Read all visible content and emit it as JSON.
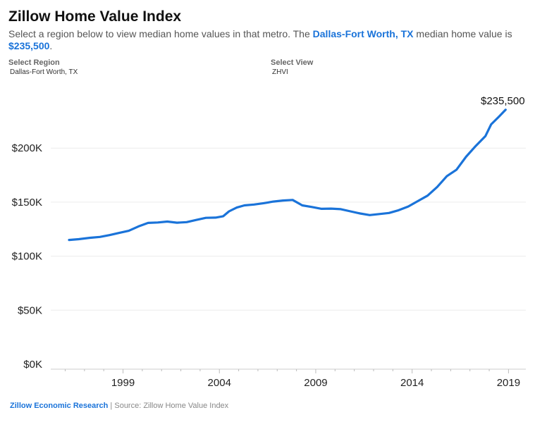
{
  "header": {
    "title": "Zillow Home Value Index",
    "subtitle_pre": "Select a region below to view median home values in that metro. The ",
    "region_highlight": "Dallas-Fort Worth, TX",
    "subtitle_mid": " median home value is ",
    "value_highlight": "$235,500",
    "subtitle_end": "."
  },
  "controls": {
    "region_label": "Select Region",
    "region_value": "Dallas-Fort Worth, TX",
    "view_label": "Select View",
    "view_value": "ZHVI"
  },
  "footer": {
    "brand": "Zillow Economic Research",
    "separator": " | ",
    "source": "Source: Zillow Home Value Index"
  },
  "colors": {
    "line": "#1a73d9",
    "highlight": "#1a73d9"
  },
  "chart_data": {
    "type": "line",
    "title": "Zillow Home Value Index",
    "series": [
      {
        "name": "Dallas-Fort Worth, TX ZHVI",
        "x": [
          1996.2,
          1996.7,
          1997.3,
          1997.8,
          1998.3,
          1998.8,
          1999.3,
          1999.8,
          2000.3,
          2000.8,
          2001.3,
          2001.8,
          2002.3,
          2002.8,
          2003.3,
          2003.8,
          2004.2,
          2004.5,
          2004.9,
          2005.3,
          2005.8,
          2006.3,
          2006.8,
          2007.3,
          2007.8,
          2008.3,
          2008.8,
          2009.3,
          2009.8,
          2010.3,
          2010.8,
          2011.3,
          2011.8,
          2012.3,
          2012.8,
          2013.3,
          2013.8,
          2014.3,
          2014.8,
          2015.3,
          2015.8,
          2016.3,
          2016.8,
          2017.3,
          2017.8,
          2018.1,
          2018.5,
          2018.85
        ],
        "y": [
          115000,
          115700,
          117000,
          117800,
          119500,
          121500,
          123500,
          127500,
          130800,
          131200,
          132000,
          131000,
          131500,
          133500,
          135500,
          135700,
          137000,
          141500,
          145000,
          147000,
          147800,
          149000,
          150500,
          151500,
          152000,
          147000,
          145500,
          143800,
          144000,
          143500,
          141500,
          139500,
          138000,
          139000,
          140000,
          142500,
          146000,
          151000,
          156000,
          164000,
          174000,
          180000,
          192000,
          202000,
          211000,
          222000,
          229000,
          235500
        ]
      }
    ],
    "end_label": "$235,500",
    "y_ticks": [
      0,
      50000,
      100000,
      150000,
      200000
    ],
    "y_tick_labels": [
      "$0K",
      "$50K",
      "$100K",
      "$150K",
      "$200K"
    ],
    "x_ticks": [
      1999,
      2004,
      2009,
      2014,
      2019
    ],
    "x_tick_labels": [
      "1999",
      "2004",
      "2009",
      "2014",
      "2019"
    ],
    "xlim": [
      1995.25,
      2019.9
    ],
    "ylim": [
      0,
      236000
    ]
  }
}
